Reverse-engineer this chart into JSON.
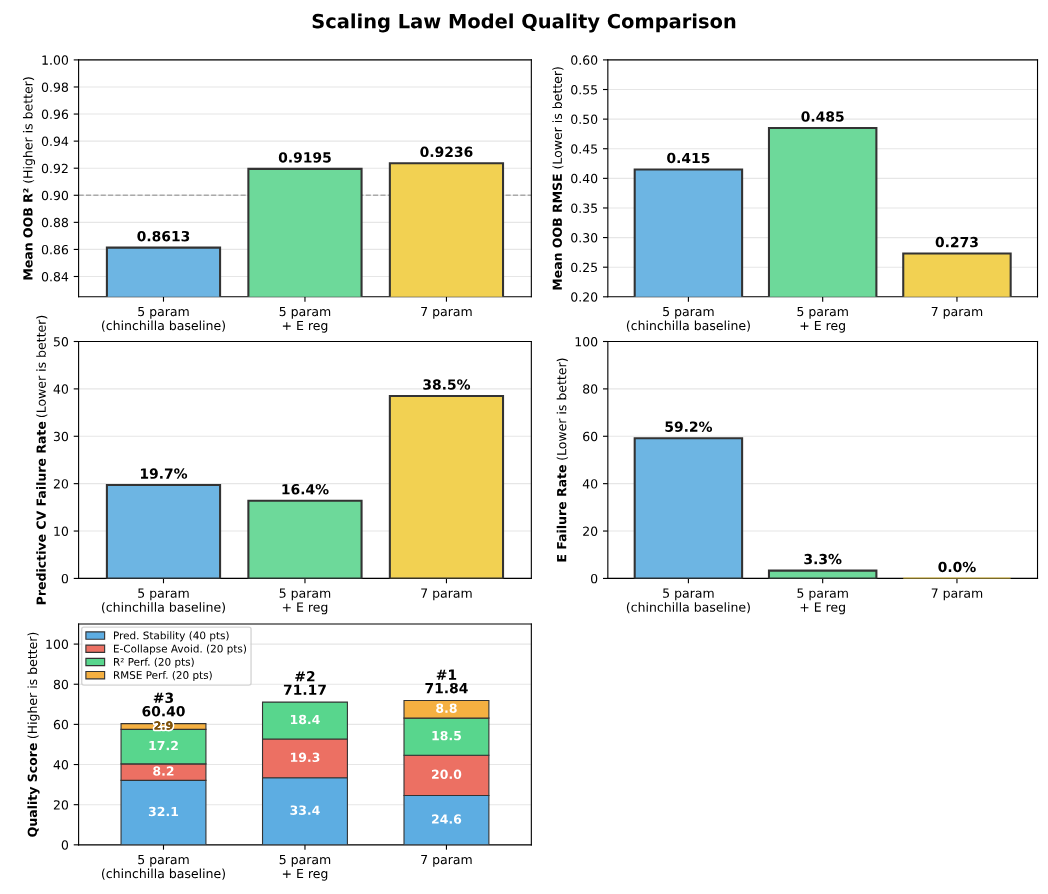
{
  "chart_data": [
    {
      "type": "bar",
      "title": "Scaling Law Model Quality Comparison",
      "ylabel": "Mean OOB R² (Higher is better)",
      "categories": [
        "5 param\n(chinchilla baseline)",
        "5 param\n+ E reg",
        "7 param"
      ],
      "values": [
        0.8613,
        0.9195,
        0.9236
      ],
      "colors": [
        "#6db5e3",
        "#6dd99a",
        "#f2d152"
      ],
      "data_labels": true,
      "ylim": [
        0.825,
        1.0
      ],
      "yticks": [
        {
          "value": 0.84,
          "label": "0.84"
        },
        {
          "value": 0.86,
          "label": "0.86"
        },
        {
          "value": 0.88,
          "label": "0.88"
        },
        {
          "value": 0.9,
          "label": "0.90"
        },
        {
          "value": 0.92,
          "label": "0.92"
        },
        {
          "value": 0.94,
          "label": "0.94"
        },
        {
          "value": 0.96,
          "label": "0.96"
        },
        {
          "value": 0.98,
          "label": "0.98"
        },
        {
          "value": 1.0,
          "label": "1.00"
        }
      ],
      "grid": "y",
      "ref_lines": [
        {
          "axis": "y",
          "value": 0.9,
          "color": "#aaaaaa",
          "line_style": "dashed"
        }
      ]
    },
    {
      "type": "bar",
      "ylabel": "Mean OOB RMSE (Lower is better)",
      "categories": [
        "5 param\n(chinchilla baseline)",
        "5 param\n+ E reg",
        "7 param"
      ],
      "values": [
        0.415,
        0.485,
        0.273
      ],
      "colors": [
        "#6db5e3",
        "#6dd99a",
        "#f2d152"
      ],
      "data_labels": true,
      "ylim": [
        0.2,
        0.6
      ],
      "yticks": [
        {
          "value": 0.2,
          "label": "0.20"
        },
        {
          "value": 0.25,
          "label": "0.25"
        },
        {
          "value": 0.3,
          "label": "0.30"
        },
        {
          "value": 0.35,
          "label": "0.35"
        },
        {
          "value": 0.4,
          "label": "0.40"
        },
        {
          "value": 0.45,
          "label": "0.45"
        },
        {
          "value": 0.5,
          "label": "0.50"
        },
        {
          "value": 0.55,
          "label": "0.55"
        },
        {
          "value": 0.6,
          "label": "0.60"
        }
      ],
      "grid": "y"
    },
    {
      "type": "bar",
      "ylabel": "Predictive CV Failure Rate (Lower is better)",
      "categories": [
        "5 param\n(chinchilla baseline)",
        "5 param\n+ E reg",
        "7 param"
      ],
      "values": [
        19.7,
        16.4,
        38.5
      ],
      "value_labels": [
        "19.7%",
        "16.4%",
        "38.5%"
      ],
      "colors": [
        "#6db5e3",
        "#6dd99a",
        "#f2d152"
      ],
      "ylim": [
        0,
        50
      ],
      "yticks": [
        0,
        10,
        20,
        30,
        40,
        50
      ],
      "grid": "y"
    },
    {
      "type": "bar",
      "ylabel": "E Failure Rate (Lower is better)",
      "categories": [
        "5 param\n(chinchilla baseline)",
        "5 param\n+ E reg",
        "7 param"
      ],
      "values": [
        59.2,
        3.3,
        0.0
      ],
      "value_labels": [
        "59.2%",
        "3.3%",
        "0.0%"
      ],
      "colors": [
        "#6db5e3",
        "#6dd99a",
        "#f2d152"
      ],
      "ylim": [
        0,
        100
      ],
      "yticks": [
        0,
        20,
        40,
        60,
        80,
        100
      ],
      "grid": "y"
    },
    {
      "type": "bar",
      "stacked": true,
      "ylabel": "Quality Score (Higher is better)",
      "categories": [
        "5 param\n(chinchilla baseline)",
        "5 param\n+ E reg",
        "7 param"
      ],
      "series": [
        {
          "name": "Pred. Stability (40 pts)",
          "color": "#5dade2",
          "values": [
            32.1,
            33.4,
            24.6
          ]
        },
        {
          "name": "E-Collapse Avoid. (20 pts)",
          "color": "#ec7063",
          "values": [
            8.2,
            19.3,
            20.0
          ],
          "value_labels": [
            "8.2",
            "19.3",
            "20.0"
          ]
        },
        {
          "name": "R² Perf. (20 pts)",
          "color": "#58d68d",
          "values": [
            17.2,
            18.4,
            18.5
          ]
        },
        {
          "name": "RMSE Perf. (20 pts)",
          "color": "#f5b041",
          "values": [
            2.9,
            null,
            8.8
          ],
          "value_labels": [
            "2.9",
            null,
            "8.8"
          ]
        }
      ],
      "data_labels": true,
      "totals": [
        "#3\n60.40",
        "#2\n71.17",
        "#1\n71.84"
      ],
      "ylim": [
        0,
        110
      ],
      "yticks": [
        0,
        20,
        40,
        60,
        80,
        100
      ],
      "grid": "y",
      "legend": "top left"
    }
  ]
}
